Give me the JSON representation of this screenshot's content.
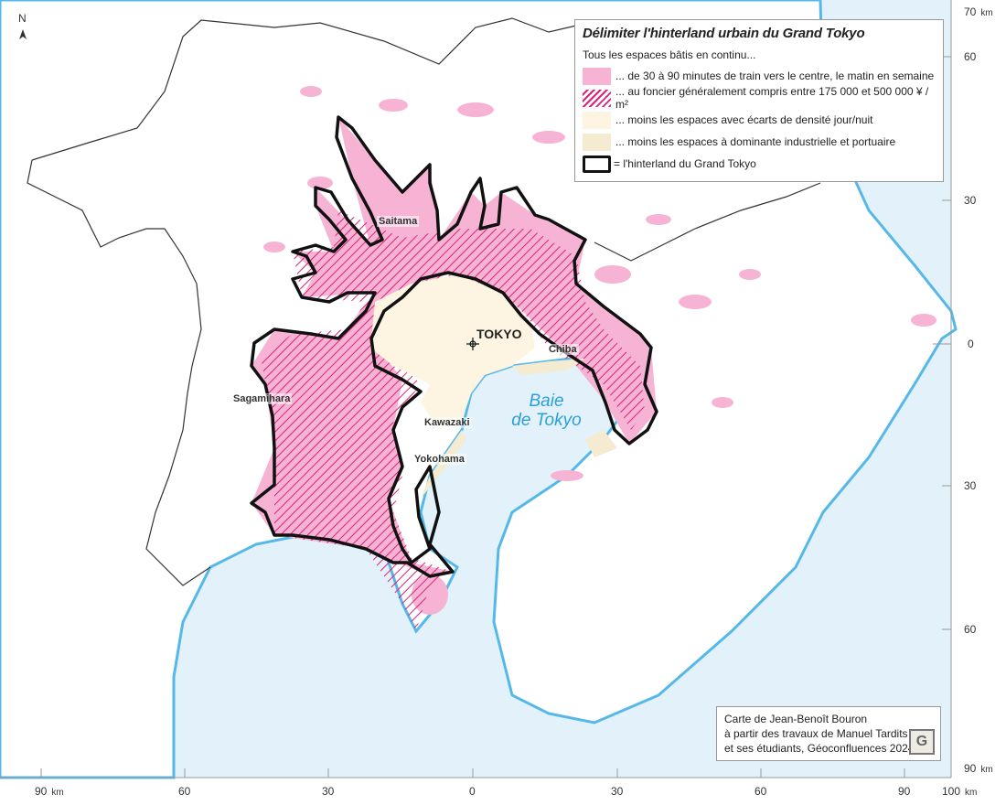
{
  "map": {
    "north_label": "N",
    "colors": {
      "sea": "#e3f2fa",
      "coast": "#55b8e8",
      "pink": "#f6b3d4",
      "hatch": "#e0207a",
      "cream": "#fdf5e2",
      "beige": "#f4ebd0",
      "outline": "#111111"
    }
  },
  "legend": {
    "title": "Délimiter l'hinterland urbain du Grand Tokyo",
    "intro": "Tous les espaces bâtis en continu...",
    "items": [
      {
        "symbol": "pink-fill",
        "label": "... de 30 à 90 minutes de train vers le centre, le matin en semaine"
      },
      {
        "symbol": "pink-hatch",
        "label": "... au foncier généralement compris entre 175 000 et 500 000 ¥ / m²"
      },
      {
        "symbol": "cream-fill",
        "label": "... moins les espaces avec écarts de densité jour/nuit"
      },
      {
        "symbol": "beige-fill",
        "label": "... moins les espaces à dominante industrielle et portuaire"
      },
      {
        "symbol": "thick-outline",
        "label": "= l'hinterland du Grand Tokyo"
      }
    ]
  },
  "places": {
    "tokyo": "TOKYO",
    "saitama": "Saitama",
    "chiba": "Chiba",
    "kawazaki": "Kawazaki",
    "yokohama": "Yokohama",
    "sagamihara": "Sagamihara",
    "bay_line1": "Baie",
    "bay_line2": "de Tokyo"
  },
  "axes": {
    "bottom": [
      "90",
      "60",
      "30",
      "0",
      "30",
      "60",
      "90",
      "100"
    ],
    "right": [
      "70",
      "60",
      "30",
      "0",
      "30",
      "60",
      "90"
    ],
    "unit": "km"
  },
  "credits": {
    "line1": "Carte de Jean-Benoît Bouron",
    "line2": "à partir des travaux de Manuel Tardits",
    "line3": "et ses étudiants, Géoconfluences 2024",
    "logo": "G"
  }
}
